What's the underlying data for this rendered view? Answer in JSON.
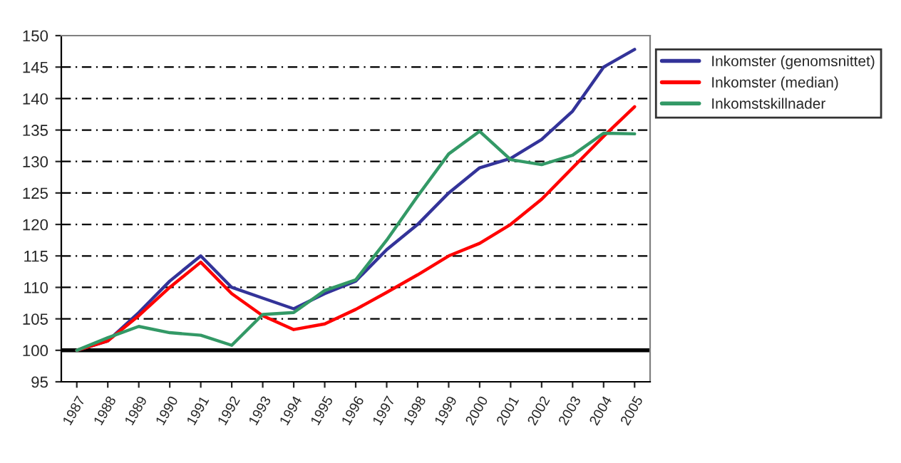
{
  "chart_data": {
    "type": "line",
    "categories": [
      "1987",
      "1988",
      "1989",
      "1990",
      "1991",
      "1992",
      "1993",
      "1994",
      "1995",
      "1996",
      "1997",
      "1998",
      "1999",
      "2000",
      "2001",
      "2002",
      "2003",
      "2004",
      "2005"
    ],
    "series": [
      {
        "name": "Inkomster (genomsnittet)",
        "color": "#333399",
        "values": [
          100,
          101.5,
          106,
          111,
          115,
          110,
          108.3,
          106.6,
          109,
          111,
          116,
          120,
          125,
          129,
          130.5,
          133.5,
          138,
          145,
          147.8
        ]
      },
      {
        "name": "Inkomster (median)",
        "color": "#ff0000",
        "values": [
          100,
          101.5,
          105.5,
          110,
          114,
          109,
          105.5,
          103.3,
          104.2,
          106.5,
          109.2,
          112,
          115,
          117,
          120,
          124,
          129,
          134,
          138.7
        ]
      },
      {
        "name": "Inkomstskillnader",
        "color": "#339966",
        "values": [
          100,
          102,
          103.8,
          102.8,
          102.4,
          100.8,
          105.7,
          106,
          109.5,
          111.2,
          117.5,
          124.5,
          131.2,
          134.8,
          130.3,
          129.5,
          131,
          134.5,
          134.4
        ]
      }
    ],
    "ylim": [
      95,
      150
    ],
    "yticks": [
      95,
      100,
      105,
      110,
      115,
      120,
      125,
      130,
      135,
      140,
      145,
      150
    ],
    "grid": "y",
    "legend": "right",
    "ref_lines": [
      {
        "axis": "y",
        "value": 100,
        "color": "#000000",
        "line_style": "solid"
      }
    ]
  }
}
